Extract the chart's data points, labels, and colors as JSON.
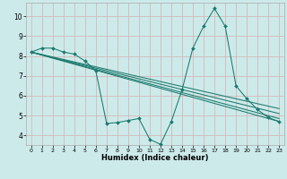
{
  "xlabel": "Humidex (Indice chaleur)",
  "xlim": [
    -0.5,
    23.5
  ],
  "ylim": [
    3.5,
    10.7
  ],
  "xticks": [
    0,
    1,
    2,
    3,
    4,
    5,
    6,
    7,
    8,
    9,
    10,
    11,
    12,
    13,
    14,
    15,
    16,
    17,
    18,
    19,
    20,
    21,
    22,
    23
  ],
  "yticks": [
    4,
    5,
    6,
    7,
    8,
    9,
    10
  ],
  "bg_color": "#cdeaea",
  "grid_color": "#d4b8b8",
  "line_color": "#1a7a6e",
  "main_x": [
    0,
    1,
    2,
    3,
    4,
    5,
    6,
    7,
    8,
    9,
    10,
    11,
    12,
    13,
    14,
    15,
    16,
    17,
    18,
    19,
    20,
    21,
    22,
    23
  ],
  "main_y": [
    8.2,
    8.4,
    8.4,
    8.2,
    8.1,
    7.75,
    7.25,
    4.6,
    4.65,
    4.75,
    4.85,
    3.8,
    3.55,
    4.7,
    6.3,
    8.4,
    9.5,
    10.4,
    9.5,
    6.5,
    5.85,
    5.3,
    4.9,
    4.7
  ],
  "straight_lines": [
    {
      "x": [
        0,
        23
      ],
      "y": [
        8.2,
        4.7
      ]
    },
    {
      "x": [
        0,
        23
      ],
      "y": [
        8.2,
        4.85
      ]
    },
    {
      "x": [
        0,
        23
      ],
      "y": [
        8.2,
        5.1
      ]
    },
    {
      "x": [
        0,
        23
      ],
      "y": [
        8.2,
        5.35
      ]
    }
  ]
}
